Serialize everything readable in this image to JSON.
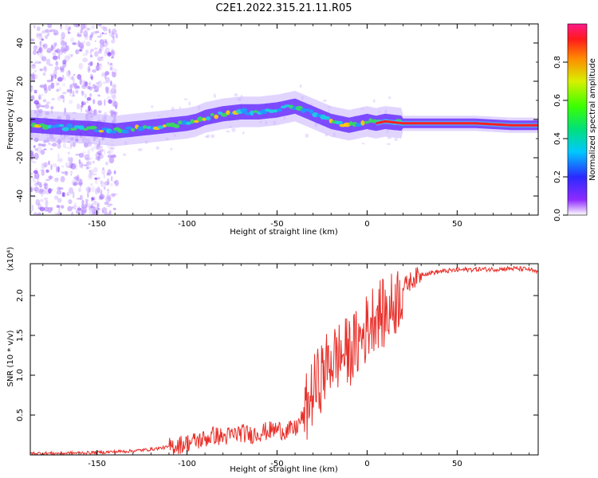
{
  "figure": {
    "title": "C2E1.2022.315.21.11.R05"
  },
  "chart_data": [
    {
      "type": "heatmap",
      "xlabel": "Height of straight line (km)",
      "ylabel": "Frequency (Hz)",
      "xlim": [
        -187,
        95
      ],
      "ylim": [
        -50,
        50
      ],
      "x_ticks": [
        -150,
        -100,
        -50,
        0,
        50
      ],
      "y_ticks": [
        -40,
        -20,
        0,
        20,
        40
      ],
      "ridge": {
        "x": [
          -185,
          -170,
          -150,
          -140,
          -120,
          -110,
          -100,
          -95,
          -90,
          -80,
          -70,
          -60,
          -50,
          -45,
          -40,
          -35,
          -30,
          -25,
          -20,
          -15,
          -10,
          -5,
          0,
          5,
          10,
          20,
          40,
          60,
          80,
          95
        ],
        "y": [
          -3,
          -4,
          -5,
          -6,
          -4,
          -3,
          -2,
          -1,
          1,
          3,
          4,
          4,
          5,
          6,
          7,
          5,
          3,
          1,
          -1,
          -2,
          -3,
          -2,
          -1,
          -2,
          -1,
          -2,
          -2,
          -2,
          -3,
          -3
        ]
      },
      "colorbar": {
        "label": "Normalized spectral amplitude",
        "range": [
          0,
          1
        ],
        "ticks": [
          0.0,
          0.2,
          0.4,
          0.6,
          0.8
        ]
      }
    },
    {
      "type": "line",
      "xlabel": "Height of straight line (km)",
      "ylabel": "SNR (10 * v/v)",
      "y_multiplier": "(x10⁴)",
      "xlim": [
        -187,
        95
      ],
      "ylim": [
        0,
        2.4
      ],
      "x_ticks": [
        -150,
        -100,
        -50,
        0,
        50
      ],
      "y_ticks": [
        0.5,
        1.0,
        1.5,
        2.0
      ],
      "series": [
        {
          "color": "#e8302a",
          "x": [
            -187,
            -170,
            -150,
            -140,
            -130,
            -120,
            -110,
            -100,
            -90,
            -85,
            -80,
            -75,
            -70,
            -65,
            -60,
            -55,
            -50,
            -45,
            -40,
            -35,
            -30,
            -25,
            -20,
            -15,
            -10,
            -5,
            0,
            5,
            10,
            15,
            20,
            25,
            30,
            40,
            50,
            60,
            70,
            80,
            90,
            95
          ],
          "y": [
            0.02,
            0.02,
            0.03,
            0.04,
            0.05,
            0.07,
            0.1,
            0.15,
            0.2,
            0.25,
            0.22,
            0.25,
            0.28,
            0.25,
            0.28,
            0.3,
            0.32,
            0.3,
            0.32,
            0.5,
            0.8,
            1.0,
            1.2,
            1.25,
            1.3,
            1.4,
            1.6,
            1.8,
            1.75,
            1.9,
            2.1,
            2.2,
            2.27,
            2.3,
            2.32,
            2.33,
            2.33,
            2.34,
            2.33,
            2.28
          ]
        }
      ]
    }
  ]
}
